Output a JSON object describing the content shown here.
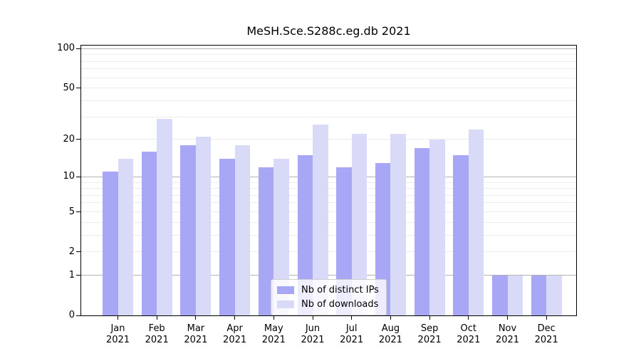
{
  "figure": {
    "background": "#ffffff"
  },
  "chart_data": {
    "type": "bar",
    "title": "MeSH.Sce.S288c.eg.db 2021",
    "xlabel": "",
    "ylabel": "",
    "categories": [
      "Jan 2021",
      "Feb 2021",
      "Mar 2021",
      "Apr 2021",
      "May 2021",
      "Jun 2021",
      "Jul 2021",
      "Aug 2021",
      "Sep 2021",
      "Oct 2021",
      "Nov 2021",
      "Dec 2021"
    ],
    "series": [
      {
        "name": "Nb of distinct IPs",
        "color": "#a7a7f6",
        "values": [
          11,
          16,
          18,
          14,
          12,
          15,
          12,
          13,
          17,
          15,
          1,
          1
        ]
      },
      {
        "name": "Nb of downloads",
        "color": "#d9d9f8",
        "values": [
          14,
          29,
          21,
          18,
          14,
          26,
          22,
          22,
          20,
          24,
          1,
          1
        ]
      }
    ],
    "yscale": "log1p",
    "ylim": [
      0,
      108
    ],
    "ytick_labels": [
      "100",
      "50",
      "20",
      "10",
      "5",
      "2",
      "1",
      "0"
    ],
    "ytick_values": [
      100,
      50,
      20,
      10,
      5,
      2,
      1,
      0
    ],
    "major_gridlines": [
      1,
      10,
      100
    ],
    "minor_gridlines": [
      2,
      3,
      4,
      5,
      6,
      7,
      8,
      9,
      20,
      30,
      40,
      50,
      60,
      70,
      80,
      90
    ],
    "grid": true,
    "legend_position": "lower center inside"
  },
  "colors": {
    "axis": "#000000",
    "major_grid": "#b3b3b3",
    "minor_grid": "#ececec"
  }
}
